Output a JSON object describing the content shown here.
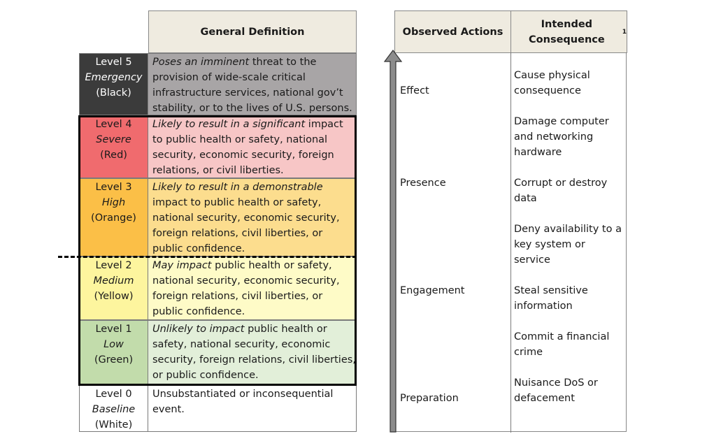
{
  "left_table": {
    "header": "General Definition",
    "rows": [
      {
        "level": "Level 5",
        "name": "Emergency",
        "color": "(Black)",
        "def_italic": "Poses an imminent",
        "def_rest": " threat to the provision of wide-scale critical infrastructure services, national gov’t stability, or to the lives of U.S. persons.",
        "level_bg": "#3b3b3b",
        "def_bg": "#a8a5a6",
        "text_color": "#ffffff"
      },
      {
        "level": "Level 4",
        "name": "Severe",
        "color": "(Red)",
        "def_italic": "Likely to result in a significant",
        "def_rest": " impact to public health or safety, national security, economic security, foreign relations, or civil liberties.",
        "level_bg": "#f06b6e",
        "def_bg": "#f7c6c6",
        "text_color": "#1a1a1a"
      },
      {
        "level": "Level 3",
        "name": "High",
        "color": "(Orange)",
        "def_italic": "Likely to result in a demonstrable",
        "def_rest": " impact to public health or safety, national security, economic security, foreign relations, civil liberties, or public confidence.",
        "level_bg": "#fbbf47",
        "def_bg": "#fcdd8e",
        "text_color": "#1a1a1a"
      },
      {
        "level": "Level 2",
        "name": "Medium",
        "color": "(Yellow)",
        "def_italic": "May impact",
        "def_rest": " public health or safety, national security, economic security, foreign relations, civil liberties, or public confidence.",
        "level_bg": "#fdf59e",
        "def_bg": "#fefbc7",
        "text_color": "#1a1a1a"
      },
      {
        "level": "Level 1",
        "name": "Low",
        "color": "(Green)",
        "def_italic": "Unlikely to impact",
        "def_rest": " public health or safety, national security, economic security, foreign relations, civil liberties, or public confidence.",
        "level_bg": "#c2dcab",
        "def_bg": "#e2efd9",
        "text_color": "#1a1a1a"
      },
      {
        "level": "Level 0",
        "name": "Baseline",
        "color": "(White)",
        "def_italic": "",
        "def_rest": "Unsubstantiated or inconsequential event.",
        "level_bg": "#ffffff",
        "def_bg": "#ffffff",
        "text_color": "#1a1a1a"
      }
    ]
  },
  "right_table": {
    "header_actions": "Observed Actions",
    "header_consequence": "Intended Consequence",
    "header_sup": "1",
    "actions": [
      "Effect",
      "Presence",
      "Engagement",
      "Preparation"
    ],
    "consequences": [
      "Cause physical consequence",
      "Damage computer and networking hardware",
      "Corrupt or destroy data",
      "Deny availability to a key system or service",
      "Steal sensitive information",
      "Commit a financial crime",
      "Nuisance DoS or defacement"
    ]
  }
}
